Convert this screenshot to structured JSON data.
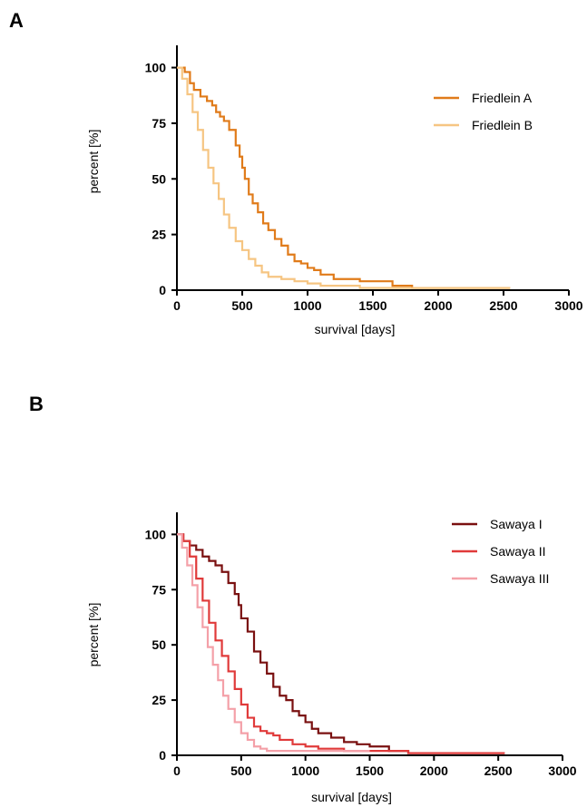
{
  "chart_data": [
    {
      "panel_label": "A",
      "type": "line",
      "xlabel": "survival [days]",
      "ylabel": "percent [%]",
      "xlim": [
        0,
        3000
      ],
      "ylim": [
        0,
        110
      ],
      "xticks": [
        0,
        500,
        1000,
        1500,
        2000,
        2500,
        3000
      ],
      "yticks": [
        0,
        25,
        50,
        75,
        100
      ],
      "legend_position": "top-right",
      "series": [
        {
          "name": "Friedlein A",
          "color": "#e07b1a",
          "x": [
            0,
            60,
            100,
            130,
            180,
            230,
            270,
            300,
            330,
            360,
            400,
            450,
            480,
            500,
            520,
            550,
            580,
            620,
            660,
            700,
            750,
            800,
            850,
            900,
            950,
            1000,
            1050,
            1100,
            1200,
            1300,
            1400,
            1500,
            1650,
            1800,
            2000,
            2300,
            2550
          ],
          "y": [
            100,
            98,
            93,
            90,
            87,
            85,
            83,
            80,
            78,
            76,
            72,
            65,
            60,
            55,
            50,
            43,
            39,
            35,
            30,
            27,
            23,
            20,
            16,
            13,
            12,
            10,
            9,
            7,
            5,
            5,
            4,
            4,
            2,
            1,
            1,
            1,
            1
          ]
        },
        {
          "name": "Friedlein B",
          "color": "#f6c582",
          "x": [
            0,
            40,
            80,
            120,
            160,
            200,
            240,
            280,
            320,
            360,
            400,
            450,
            500,
            550,
            600,
            650,
            700,
            800,
            900,
            1000,
            1100,
            1200,
            1400,
            1600,
            1800,
            2000,
            2550
          ],
          "y": [
            100,
            95,
            88,
            80,
            72,
            63,
            55,
            48,
            41,
            34,
            28,
            22,
            18,
            14,
            11,
            8,
            6,
            5,
            4,
            3,
            2,
            2,
            1,
            1,
            1,
            1,
            1
          ]
        }
      ]
    },
    {
      "panel_label": "B",
      "type": "line",
      "xlabel": "survival [days]",
      "ylabel": "percent [%]",
      "xlim": [
        0,
        3000
      ],
      "ylim": [
        0,
        110
      ],
      "xticks": [
        0,
        500,
        1000,
        1500,
        2000,
        2500,
        3000
      ],
      "yticks": [
        0,
        25,
        50,
        75,
        100
      ],
      "legend_position": "top-right",
      "series": [
        {
          "name": "Sawaya I",
          "color": "#7a1010",
          "x": [
            0,
            50,
            100,
            150,
            200,
            250,
            300,
            350,
            400,
            450,
            480,
            500,
            550,
            600,
            650,
            700,
            750,
            800,
            850,
            900,
            950,
            1000,
            1050,
            1100,
            1200,
            1300,
            1400,
            1500,
            1650,
            1800,
            2000,
            2550
          ],
          "y": [
            100,
            97,
            95,
            93,
            90,
            88,
            86,
            83,
            78,
            73,
            68,
            62,
            56,
            47,
            42,
            37,
            31,
            27,
            25,
            20,
            18,
            15,
            12,
            10,
            8,
            6,
            5,
            4,
            2,
            1,
            1,
            1
          ]
        },
        {
          "name": "Sawaya II",
          "color": "#e03a3a",
          "x": [
            0,
            50,
            100,
            150,
            200,
            250,
            300,
            350,
            400,
            450,
            500,
            550,
            600,
            650,
            700,
            750,
            800,
            900,
            1000,
            1100,
            1300,
            1500,
            1800,
            2000,
            2550
          ],
          "y": [
            100,
            97,
            90,
            80,
            70,
            60,
            52,
            45,
            38,
            30,
            23,
            17,
            13,
            11,
            10,
            9,
            7,
            5,
            4,
            3,
            2,
            2,
            1,
            1,
            1
          ]
        },
        {
          "name": "Sawaya III",
          "color": "#f4a0a8",
          "x": [
            0,
            40,
            80,
            120,
            160,
            200,
            240,
            280,
            320,
            360,
            400,
            450,
            500,
            550,
            600,
            650,
            700,
            800,
            900,
            1000,
            1200,
            1500
          ],
          "y": [
            100,
            94,
            86,
            77,
            67,
            58,
            49,
            41,
            34,
            27,
            21,
            15,
            10,
            7,
            4,
            3,
            2,
            2,
            2,
            2,
            2,
            2
          ]
        }
      ]
    }
  ]
}
